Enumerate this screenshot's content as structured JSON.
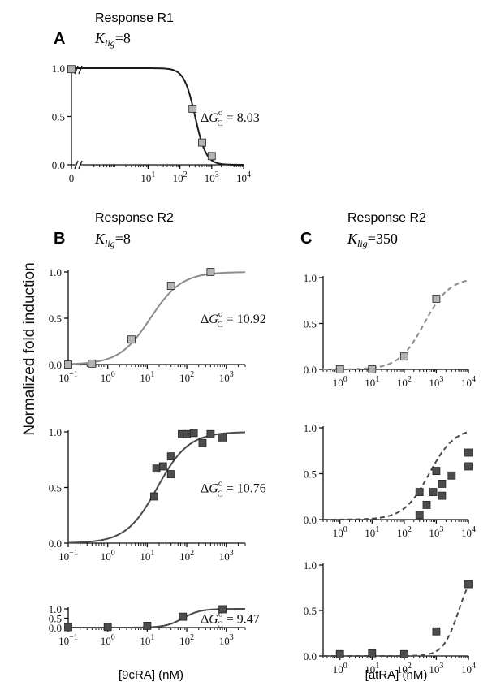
{
  "ylabel": "Normalized fold induction",
  "xlabels": {
    "left": "[9cRA] (nM)",
    "right": "[atRA] (nM)"
  },
  "panels": {
    "A": {
      "letter": "A",
      "response": "Response R1",
      "klig_prefix": "K",
      "klig_sub": "lig",
      "klig_value": "=8"
    },
    "B": {
      "letter": "B",
      "response": "Response R2",
      "klig_prefix": "K",
      "klig_sub": "lig",
      "klig_value": "=8"
    },
    "C": {
      "letter": "C",
      "response": "Response R2",
      "klig_prefix": "K",
      "klig_sub": "lig",
      "klig_value": "=350"
    }
  },
  "colors": {
    "light_marker": "#b3b3b3",
    "dark_marker": "#4d4d4d",
    "curve_light": "#8c8c8c",
    "curve_dark": "#4a4a4a",
    "curve_black": "#1a1a1a"
  },
  "chart_data": [
    {
      "id": "A",
      "type": "scatter",
      "title": "Response R1",
      "xscale": "log",
      "xlim": [
        0.1,
        10000
      ],
      "ylim": [
        0,
        1.0
      ],
      "x_zero_break": true,
      "xticks": [
        "0",
        "10^1",
        "10^2",
        "10^3",
        "10^4"
      ],
      "yticks": [
        "0.0",
        "0.5",
        "1.0"
      ],
      "points": [
        [
          0,
          0.99
        ],
        [
          250,
          0.58
        ],
        [
          500,
          0.23
        ],
        [
          1000,
          0.09
        ]
      ],
      "curve": {
        "kind": "decreasing",
        "ec50": 300,
        "hill": 2.5,
        "style": "solid",
        "color_key": "curve_black"
      },
      "marker_key": "light_marker",
      "annotation": "ΔG°C = 8.03",
      "dg_value": "8.03"
    },
    {
      "id": "B1",
      "type": "scatter",
      "xscale": "log",
      "xlim": [
        0.1,
        3000
      ],
      "ylim": [
        0,
        1.0
      ],
      "xticks": [
        "10^-1",
        "10^0",
        "10^1",
        "10^2",
        "10^3"
      ],
      "yticks": [
        "0.0",
        "0.5",
        "1.0"
      ],
      "points": [
        [
          0.1,
          0.0
        ],
        [
          0.4,
          0.01
        ],
        [
          4,
          0.27
        ],
        [
          40,
          0.85
        ],
        [
          400,
          1.0
        ]
      ],
      "curve": {
        "kind": "increasing",
        "ec50": 12,
        "hill": 1.1,
        "style": "solid",
        "color_key": "curve_light"
      },
      "marker_key": "light_marker",
      "annotation": "ΔG°C = 10.92",
      "dg_value": "10.92"
    },
    {
      "id": "B2",
      "type": "scatter",
      "xscale": "log",
      "xlim": [
        0.1,
        3000
      ],
      "ylim": [
        0,
        1.0
      ],
      "xticks": [
        "10^-1",
        "10^0",
        "10^1",
        "10^2",
        "10^3"
      ],
      "yticks": [
        "0.0",
        "0.5",
        "1.0"
      ],
      "points": [
        [
          15,
          0.42
        ],
        [
          17,
          0.67
        ],
        [
          25,
          0.69
        ],
        [
          40,
          0.62
        ],
        [
          40,
          0.78
        ],
        [
          75,
          0.98
        ],
        [
          100,
          0.98
        ],
        [
          150,
          0.99
        ],
        [
          250,
          0.9
        ],
        [
          400,
          0.98
        ],
        [
          800,
          0.95
        ]
      ],
      "curve": {
        "kind": "increasing",
        "ec50": 18,
        "hill": 1.1,
        "style": "solid",
        "color_key": "curve_dark"
      },
      "marker_key": "dark_marker",
      "annotation": "ΔG°C = 10.76",
      "dg_value": "10.76"
    },
    {
      "id": "B3",
      "type": "scatter",
      "xscale": "log",
      "xlim": [
        0.1,
        3000
      ],
      "ylim": [
        0,
        1.0
      ],
      "xticks": [
        "10^-1",
        "10^0",
        "10^1",
        "10^2",
        "10^3"
      ],
      "yticks": [
        "0.0",
        "0.5",
        "1.0"
      ],
      "points": [
        [
          0.1,
          0.02
        ],
        [
          1,
          0.03
        ],
        [
          10,
          0.09
        ],
        [
          80,
          0.58
        ],
        [
          800,
          0.98
        ]
      ],
      "curve": {
        "kind": "increasing",
        "ec50": 80,
        "hill": 2.0,
        "style": "solid",
        "color_key": "curve_dark"
      },
      "marker_key": "dark_marker",
      "annotation": "ΔG°C = 9.47",
      "dg_value": "9.47"
    },
    {
      "id": "C1",
      "type": "scatter",
      "xscale": "log",
      "xlim": [
        0.3,
        10000
      ],
      "ylim": [
        0,
        1.0
      ],
      "xticks": [
        "10^0",
        "10^1",
        "10^2",
        "10^3",
        "10^4"
      ],
      "yticks": [
        "0.0",
        "0.5",
        "1.0"
      ],
      "points": [
        [
          1,
          0.0
        ],
        [
          10,
          0.0
        ],
        [
          100,
          0.14
        ],
        [
          1000,
          0.77
        ]
      ],
      "curve": {
        "kind": "increasing",
        "ec50": 420,
        "hill": 1.1,
        "style": "dashed",
        "color_key": "curve_light"
      },
      "marker_key": "light_marker"
    },
    {
      "id": "C2",
      "type": "scatter",
      "xscale": "log",
      "xlim": [
        0.3,
        10000
      ],
      "ylim": [
        0,
        1.0
      ],
      "xticks": [
        "10^0",
        "10^1",
        "10^2",
        "10^3",
        "10^4"
      ],
      "yticks": [
        "0.0",
        "0.5",
        "1.0"
      ],
      "points": [
        [
          300,
          0.3
        ],
        [
          300,
          0.05
        ],
        [
          500,
          0.16
        ],
        [
          800,
          0.3
        ],
        [
          1000,
          0.53
        ],
        [
          1500,
          0.39
        ],
        [
          1500,
          0.26
        ],
        [
          3000,
          0.48
        ],
        [
          10000,
          0.73
        ],
        [
          10000,
          0.58
        ]
      ],
      "curve": {
        "kind": "increasing",
        "ec50": 600,
        "hill": 1.1,
        "style": "dashed",
        "color_key": "curve_dark"
      },
      "marker_key": "dark_marker"
    },
    {
      "id": "C3",
      "type": "scatter",
      "xscale": "log",
      "xlim": [
        0.3,
        10000
      ],
      "ylim": [
        0,
        1.0
      ],
      "xticks": [
        "10^0",
        "10^1",
        "10^2",
        "10^3",
        "10^4"
      ],
      "yticks": [
        "0.0",
        "0.5",
        "1.0"
      ],
      "points": [
        [
          1,
          0.02
        ],
        [
          10,
          0.03
        ],
        [
          100,
          0.02
        ],
        [
          1000,
          0.27
        ],
        [
          10000,
          0.79
        ]
      ],
      "curve": {
        "kind": "increasing",
        "ec50": 5000,
        "hill": 1.8,
        "style": "dashed",
        "color_key": "curve_dark"
      },
      "marker_key": "dark_marker"
    }
  ]
}
